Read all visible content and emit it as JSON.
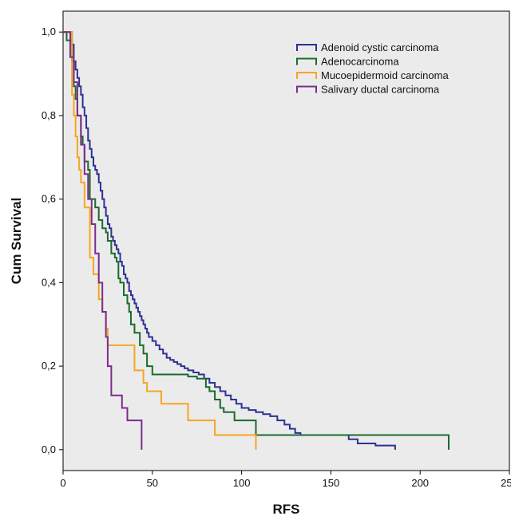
{
  "chart_data": {
    "type": "line",
    "title": "",
    "xlabel": "RFS",
    "ylabel": "Cum Survival",
    "xlim": [
      0,
      250
    ],
    "ylim": [
      0,
      1
    ],
    "x_ticks": [
      "0",
      "50",
      "100",
      "150",
      "200",
      "250"
    ],
    "x_tick_values": [
      0,
      50,
      100,
      150,
      200,
      250
    ],
    "y_ticks": [
      "0,0",
      "0,2",
      "0,4",
      "0,6",
      "0,8",
      "1,0"
    ],
    "y_tick_values": [
      0,
      0.2,
      0.4,
      0.6,
      0.8,
      1.0
    ],
    "grid": false,
    "legend_position": "top-right",
    "step": true,
    "series": [
      {
        "name": "Adenoid cystic carcinoma",
        "color": "#2e3192",
        "x": [
          0,
          3,
          5,
          6,
          7,
          8,
          9,
          10,
          11,
          12,
          13,
          14,
          15,
          16,
          17,
          18,
          19,
          20,
          21,
          22,
          23,
          24,
          25,
          26,
          27,
          28,
          29,
          30,
          31,
          32,
          33,
          34,
          35,
          36,
          37,
          38,
          39,
          40,
          41,
          42,
          43,
          44,
          45,
          46,
          47,
          48,
          50,
          52,
          54,
          56,
          58,
          60,
          62,
          64,
          66,
          68,
          70,
          73,
          76,
          79,
          82,
          85,
          88,
          91,
          94,
          97,
          100,
          104,
          108,
          112,
          116,
          120,
          124,
          127,
          130,
          133,
          160,
          165,
          175,
          186
        ],
        "y": [
          1.0,
          1.0,
          0.97,
          0.93,
          0.91,
          0.89,
          0.87,
          0.85,
          0.82,
          0.8,
          0.77,
          0.74,
          0.72,
          0.7,
          0.68,
          0.67,
          0.66,
          0.64,
          0.62,
          0.6,
          0.58,
          0.56,
          0.54,
          0.53,
          0.51,
          0.5,
          0.49,
          0.48,
          0.47,
          0.45,
          0.44,
          0.42,
          0.41,
          0.4,
          0.38,
          0.37,
          0.36,
          0.35,
          0.34,
          0.33,
          0.32,
          0.31,
          0.3,
          0.29,
          0.28,
          0.27,
          0.26,
          0.25,
          0.24,
          0.23,
          0.22,
          0.215,
          0.21,
          0.205,
          0.2,
          0.195,
          0.19,
          0.185,
          0.18,
          0.17,
          0.16,
          0.15,
          0.14,
          0.13,
          0.12,
          0.11,
          0.1,
          0.095,
          0.09,
          0.085,
          0.08,
          0.07,
          0.06,
          0.05,
          0.04,
          0.035,
          0.025,
          0.015,
          0.01,
          0.0
        ]
      },
      {
        "name": "Adenocarcinoma",
        "color": "#1a6b2e",
        "x": [
          0,
          2,
          5,
          6,
          7,
          8,
          10,
          11,
          12,
          14,
          15,
          18,
          20,
          22,
          24,
          25,
          27,
          29,
          30,
          31,
          32,
          34,
          36,
          37,
          38,
          40,
          43,
          45,
          47,
          50,
          55,
          63,
          70,
          75,
          80,
          82,
          85,
          88,
          90,
          96,
          108,
          216
        ],
        "y": [
          1.0,
          0.98,
          0.93,
          0.87,
          0.84,
          0.8,
          0.75,
          0.73,
          0.69,
          0.67,
          0.6,
          0.58,
          0.55,
          0.53,
          0.52,
          0.5,
          0.47,
          0.46,
          0.45,
          0.41,
          0.4,
          0.37,
          0.35,
          0.33,
          0.3,
          0.28,
          0.25,
          0.23,
          0.2,
          0.18,
          0.18,
          0.18,
          0.175,
          0.17,
          0.15,
          0.14,
          0.12,
          0.1,
          0.09,
          0.07,
          0.035,
          0.0
        ]
      },
      {
        "name": "Mucoepidermoid carcinoma",
        "color": "#f5a623",
        "x": [
          0,
          5,
          6,
          7,
          8,
          9,
          10,
          12,
          15,
          17,
          20,
          22,
          24,
          25,
          30,
          35,
          37,
          40,
          45,
          47,
          50,
          55,
          60,
          65,
          70,
          75,
          80,
          85,
          90,
          100,
          108
        ],
        "y": [
          1.0,
          0.85,
          0.8,
          0.75,
          0.7,
          0.67,
          0.64,
          0.58,
          0.46,
          0.42,
          0.36,
          0.33,
          0.29,
          0.25,
          0.25,
          0.25,
          0.25,
          0.19,
          0.16,
          0.14,
          0.14,
          0.11,
          0.11,
          0.11,
          0.07,
          0.07,
          0.07,
          0.035,
          0.035,
          0.035,
          0.0
        ]
      },
      {
        "name": "Salivary ductal carcinoma",
        "color": "#7b2d8e",
        "x": [
          0,
          4,
          6,
          8,
          10,
          12,
          14,
          16,
          18,
          20,
          22,
          24,
          25,
          27,
          30,
          33,
          36,
          38,
          40,
          44
        ],
        "y": [
          1.0,
          0.94,
          0.88,
          0.8,
          0.73,
          0.66,
          0.6,
          0.54,
          0.47,
          0.4,
          0.33,
          0.27,
          0.2,
          0.13,
          0.13,
          0.1,
          0.07,
          0.07,
          0.07,
          0.0
        ]
      }
    ]
  }
}
